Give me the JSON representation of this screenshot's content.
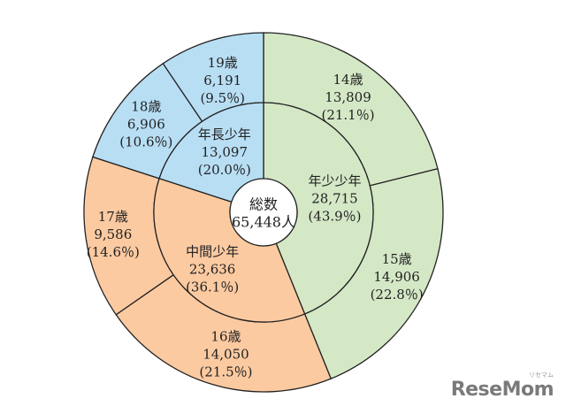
{
  "chart_data": {
    "type": "pie",
    "variant": "donut",
    "center_label": [
      "総数",
      "65,448人"
    ],
    "total": 65448,
    "outer_ring": [
      {
        "name": "14歳",
        "value": 13809,
        "value_label": "13,809",
        "percent_label": "(21.1％)",
        "color": "#d5e8c6",
        "group": "年少少年"
      },
      {
        "name": "15歳",
        "value": 14906,
        "value_label": "14,906",
        "percent_label": "(22.8％)",
        "color": "#d5e8c6",
        "group": "年少少年"
      },
      {
        "name": "16歳",
        "value": 14050,
        "value_label": "14,050",
        "percent_label": "(21.5％)",
        "color": "#fccaa1",
        "group": "中間少年"
      },
      {
        "name": "17歳",
        "value": 9586,
        "value_label": "9,586",
        "percent_label": "(14.6％)",
        "color": "#fccaa1",
        "group": "中間少年"
      },
      {
        "name": "18歳",
        "value": 6906,
        "value_label": "6,906",
        "percent_label": "(10.6％)",
        "color": "#b8def4",
        "group": "年長少年"
      },
      {
        "name": "19歳",
        "value": 6191,
        "value_label": "6,191",
        "percent_label": "(9.5％)",
        "color": "#b8def4",
        "group": "年長少年"
      }
    ],
    "inner_ring": [
      {
        "name": "年少少年",
        "value": 28715,
        "value_label": "28,715",
        "percent_label": "(43.9％)",
        "color": "#d5e8c6"
      },
      {
        "name": "中間少年",
        "value": 23636,
        "value_label": "23,636",
        "percent_label": "(36.1％)",
        "color": "#fccaa1"
      },
      {
        "name": "年長少年",
        "value": 13097,
        "value_label": "13,097",
        "percent_label": "(20.0％)",
        "color": "#b8def4"
      }
    ]
  },
  "watermark": {
    "text": "ReseMom",
    "sub": "リセマム"
  }
}
